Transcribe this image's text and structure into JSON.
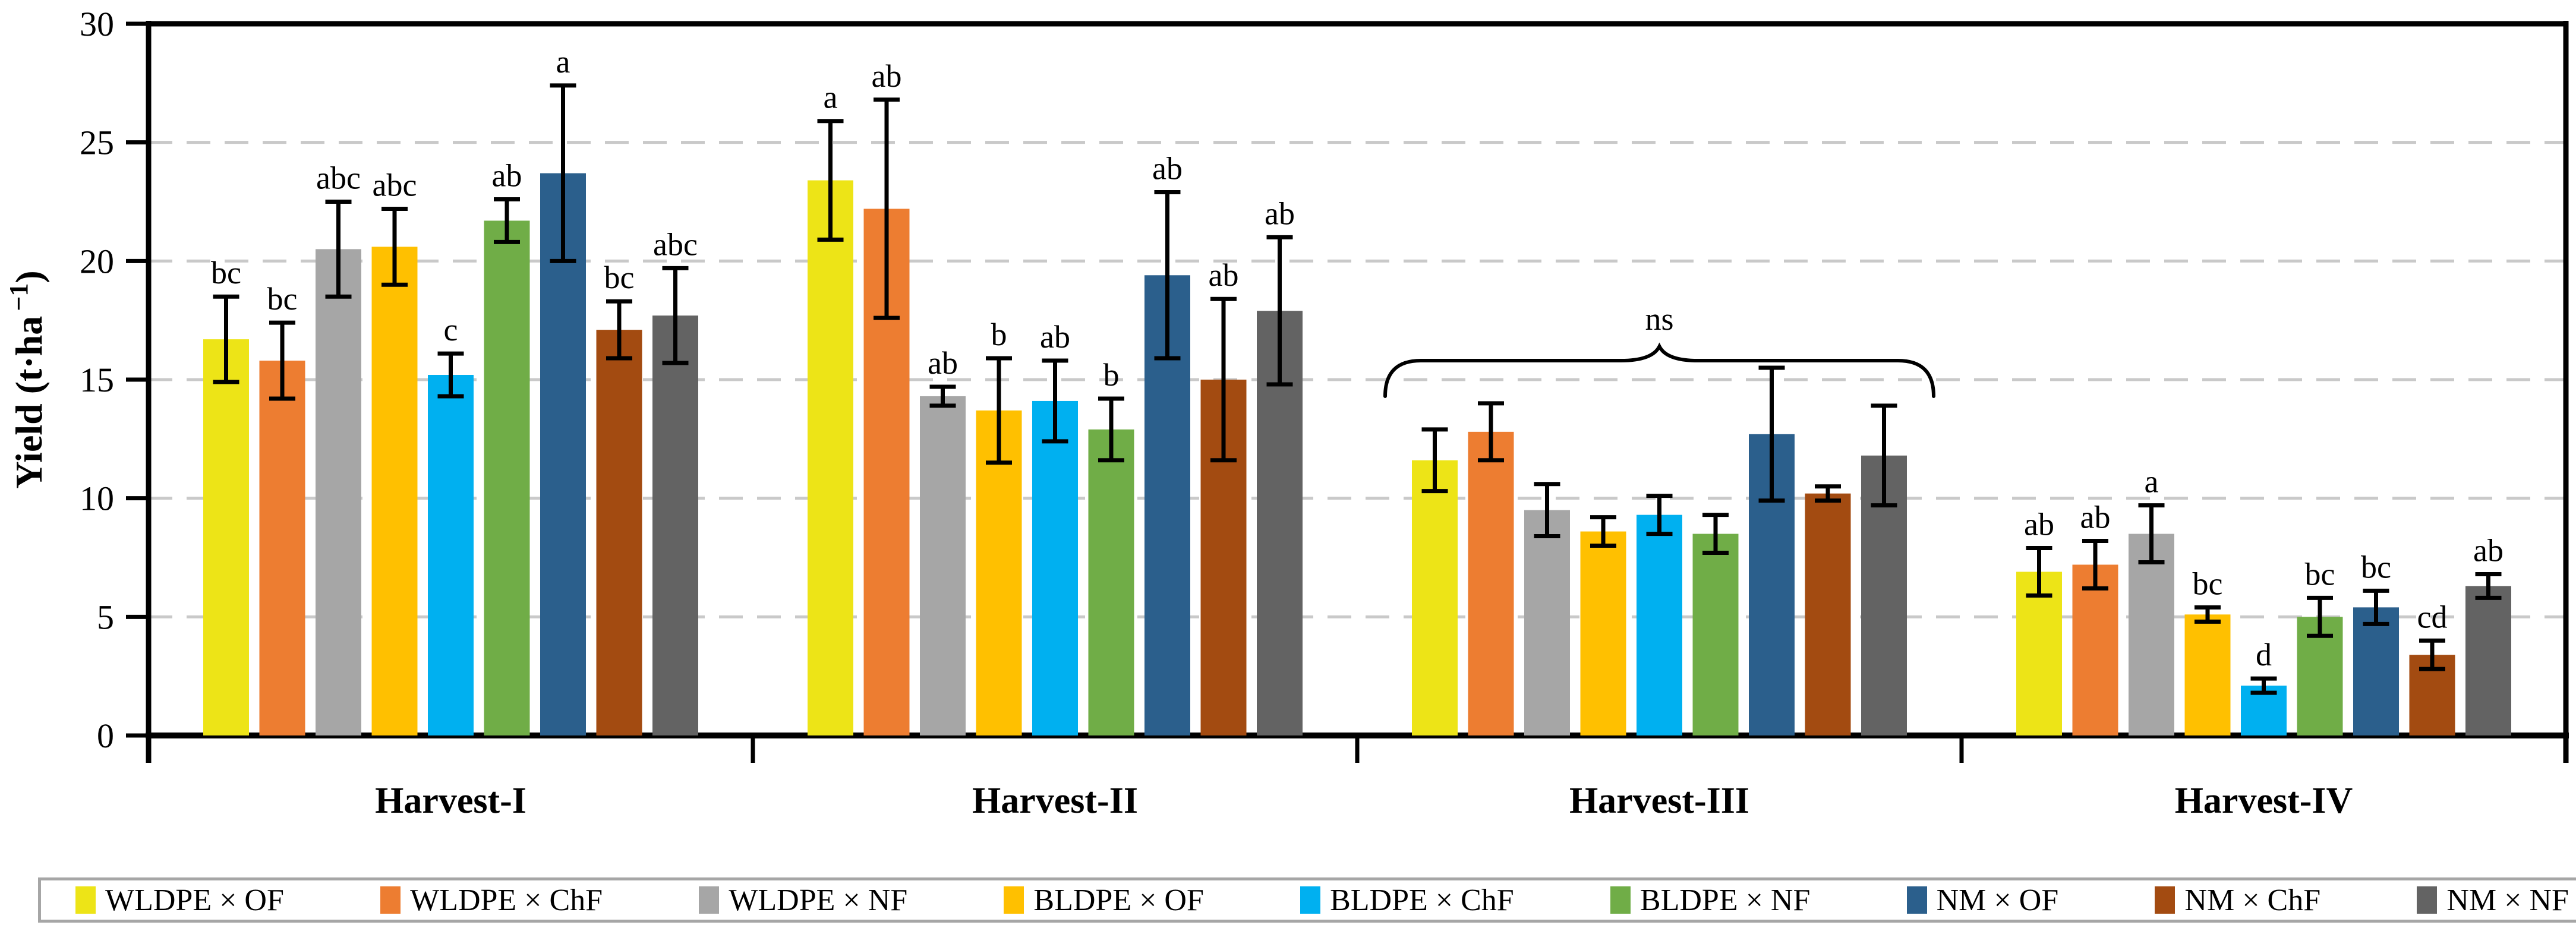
{
  "figure": {
    "ylabel_main": "Yield (t·ha",
    "ylabel_sup": "−1",
    "ylabel_end": ")"
  },
  "chart_data": {
    "type": "bar",
    "title": "",
    "xlabel": "",
    "ylabel": "Yield (t·ha−1)",
    "ylim": [
      0,
      30
    ],
    "ytick_step": 5,
    "ytick_labels": [
      "0",
      "5",
      "10",
      "15",
      "20",
      "25",
      "30"
    ],
    "grid": "horizontal-dashed",
    "legend_position": "bottom",
    "error_bars": true,
    "categories": [
      "Harvest-I",
      "Harvest-II",
      "Harvest-III",
      "Harvest-IV"
    ],
    "series": [
      {
        "name": "WLDPE × OF",
        "color": "#EDE417",
        "values": [
          16.7,
          23.4,
          11.6,
          6.9
        ],
        "errors": [
          1.8,
          2.5,
          1.3,
          1.0
        ],
        "letters": [
          "bc",
          "a",
          null,
          "ab"
        ]
      },
      {
        "name": "WLDPE × ChF",
        "color": "#ED7D31",
        "values": [
          15.8,
          22.2,
          12.8,
          7.2
        ],
        "errors": [
          1.6,
          4.6,
          1.2,
          1.0
        ],
        "letters": [
          "bc",
          "ab",
          null,
          "ab"
        ]
      },
      {
        "name": "WLDPE × NF",
        "color": "#A6A6A6",
        "values": [
          20.5,
          14.3,
          9.5,
          8.5
        ],
        "errors": [
          2.0,
          0.4,
          1.1,
          1.2
        ],
        "letters": [
          "abc",
          "ab",
          null,
          "a"
        ]
      },
      {
        "name": "BLDPE × OF",
        "color": "#FFC000",
        "values": [
          20.6,
          13.7,
          8.6,
          5.1
        ],
        "errors": [
          1.6,
          2.2,
          0.6,
          0.3
        ],
        "letters": [
          "abc",
          "b",
          null,
          "bc"
        ]
      },
      {
        "name": "BLDPE × ChF",
        "color": "#00B0F0",
        "values": [
          15.2,
          14.1,
          9.3,
          2.1
        ],
        "errors": [
          0.9,
          1.7,
          0.8,
          0.3
        ],
        "letters": [
          "c",
          "ab",
          null,
          "d"
        ]
      },
      {
        "name": "BLDPE × NF",
        "color": "#70AD47",
        "values": [
          21.7,
          12.9,
          8.5,
          5.0
        ],
        "errors": [
          0.9,
          1.3,
          0.8,
          0.8
        ],
        "letters": [
          "ab",
          "b",
          null,
          "bc"
        ]
      },
      {
        "name": "NM × OF",
        "color": "#2B5F8C",
        "values": [
          23.7,
          19.4,
          12.7,
          5.4
        ],
        "errors": [
          3.7,
          3.5,
          2.8,
          0.7
        ],
        "letters": [
          "a",
          "ab",
          null,
          "bc"
        ]
      },
      {
        "name": "NM × ChF",
        "color": "#A34B11",
        "values": [
          17.1,
          15.0,
          10.2,
          3.4
        ],
        "errors": [
          1.2,
          3.4,
          0.3,
          0.6
        ],
        "letters": [
          "bc",
          "ab",
          null,
          "cd"
        ]
      },
      {
        "name": "NM × NF",
        "color": "#636363",
        "values": [
          17.7,
          17.9,
          11.8,
          6.3
        ],
        "errors": [
          2.0,
          3.1,
          2.1,
          0.5
        ],
        "letters": [
          "abc",
          "ab",
          null,
          "ab"
        ]
      }
    ],
    "annotations": [
      {
        "type": "brace",
        "category_index": 2,
        "label": "ns"
      }
    ]
  }
}
